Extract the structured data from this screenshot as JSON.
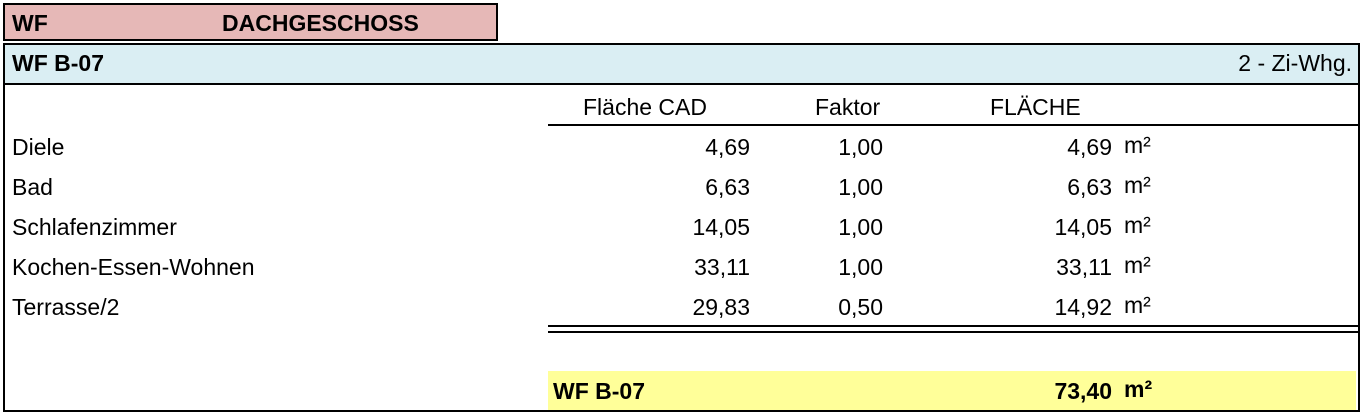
{
  "header": {
    "code": "WF",
    "floor": "DACHGESCHOSS"
  },
  "unit": {
    "name": "WF B-07",
    "type": "2 - Zi-Whg."
  },
  "table": {
    "columns": [
      "Fläche CAD",
      "Faktor",
      "FLÄCHE"
    ],
    "rows": [
      {
        "room": "Diele",
        "cad": "4,69",
        "factor": "1,00",
        "area": "4,69",
        "unit": "m²"
      },
      {
        "room": "Bad",
        "cad": "6,63",
        "factor": "1,00",
        "area": "6,63",
        "unit": "m²"
      },
      {
        "room": "Schlafenzimmer",
        "cad": "14,05",
        "factor": "1,00",
        "area": "14,05",
        "unit": "m²"
      },
      {
        "room": "Kochen-Essen-Wohnen",
        "cad": "33,11",
        "factor": "1,00",
        "area": "33,11",
        "unit": "m²"
      },
      {
        "room": "Terrasse/2",
        "cad": "29,83",
        "factor": "0,50",
        "area": "14,92",
        "unit": "m²"
      }
    ]
  },
  "total": {
    "label": "WF B-07",
    "area": "73,40",
    "unit": "m²"
  }
}
